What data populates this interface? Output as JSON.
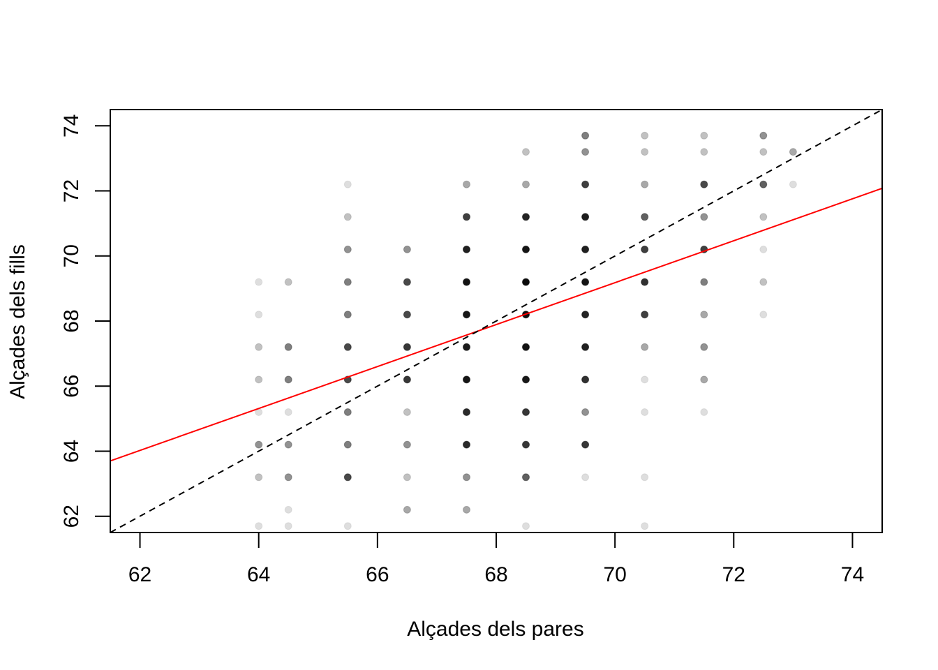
{
  "chart_data": {
    "type": "scatter",
    "title": "",
    "xlabel": "Alçades dels pares",
    "ylabel": "Alçades dels fills",
    "xlim": [
      61.5,
      74.5
    ],
    "ylim": [
      61.5,
      74.5
    ],
    "xticks": [
      62,
      64,
      66,
      68,
      70,
      72,
      74
    ],
    "yticks": [
      62,
      64,
      66,
      68,
      70,
      72,
      74
    ],
    "grid": false,
    "point_color": "#000000",
    "point_alpha_note": "darker points indicate more overlapping observations",
    "points": [
      {
        "x": 64.0,
        "y": 61.7,
        "n": 1
      },
      {
        "x": 64.0,
        "y": 63.2,
        "n": 2
      },
      {
        "x": 64.0,
        "y": 64.2,
        "n": 4
      },
      {
        "x": 64.0,
        "y": 65.2,
        "n": 1
      },
      {
        "x": 64.0,
        "y": 66.2,
        "n": 2
      },
      {
        "x": 64.0,
        "y": 67.2,
        "n": 2
      },
      {
        "x": 64.0,
        "y": 68.2,
        "n": 1
      },
      {
        "x": 64.0,
        "y": 69.2,
        "n": 1
      },
      {
        "x": 64.5,
        "y": 61.7,
        "n": 1
      },
      {
        "x": 64.5,
        "y": 62.2,
        "n": 1
      },
      {
        "x": 64.5,
        "y": 63.2,
        "n": 4
      },
      {
        "x": 64.5,
        "y": 64.2,
        "n": 4
      },
      {
        "x": 64.5,
        "y": 65.2,
        "n": 1
      },
      {
        "x": 64.5,
        "y": 66.2,
        "n": 5
      },
      {
        "x": 64.5,
        "y": 67.2,
        "n": 5
      },
      {
        "x": 64.5,
        "y": 69.2,
        "n": 2
      },
      {
        "x": 65.5,
        "y": 61.7,
        "n": 1
      },
      {
        "x": 65.5,
        "y": 63.2,
        "n": 9
      },
      {
        "x": 65.5,
        "y": 64.2,
        "n": 5
      },
      {
        "x": 65.5,
        "y": 65.2,
        "n": 5
      },
      {
        "x": 65.5,
        "y": 66.2,
        "n": 9
      },
      {
        "x": 65.5,
        "y": 67.2,
        "n": 9
      },
      {
        "x": 65.5,
        "y": 68.2,
        "n": 5
      },
      {
        "x": 65.5,
        "y": 69.2,
        "n": 5
      },
      {
        "x": 65.5,
        "y": 70.2,
        "n": 4
      },
      {
        "x": 65.5,
        "y": 71.2,
        "n": 2
      },
      {
        "x": 65.5,
        "y": 72.2,
        "n": 1
      },
      {
        "x": 66.5,
        "y": 62.2,
        "n": 3
      },
      {
        "x": 66.5,
        "y": 63.2,
        "n": 2
      },
      {
        "x": 66.5,
        "y": 64.2,
        "n": 4
      },
      {
        "x": 66.5,
        "y": 65.2,
        "n": 2
      },
      {
        "x": 66.5,
        "y": 66.2,
        "n": 11
      },
      {
        "x": 66.5,
        "y": 67.2,
        "n": 11
      },
      {
        "x": 66.5,
        "y": 68.2,
        "n": 9
      },
      {
        "x": 66.5,
        "y": 69.2,
        "n": 9
      },
      {
        "x": 66.5,
        "y": 70.2,
        "n": 4
      },
      {
        "x": 67.5,
        "y": 62.2,
        "n": 3
      },
      {
        "x": 67.5,
        "y": 63.2,
        "n": 4
      },
      {
        "x": 67.5,
        "y": 64.2,
        "n": 13
      },
      {
        "x": 67.5,
        "y": 65.2,
        "n": 13
      },
      {
        "x": 67.5,
        "y": 66.2,
        "n": 18
      },
      {
        "x": 67.5,
        "y": 67.2,
        "n": 16
      },
      {
        "x": 67.5,
        "y": 68.2,
        "n": 17
      },
      {
        "x": 67.5,
        "y": 69.2,
        "n": 19
      },
      {
        "x": 67.5,
        "y": 70.2,
        "n": 15
      },
      {
        "x": 67.5,
        "y": 71.2,
        "n": 10
      },
      {
        "x": 67.5,
        "y": 72.2,
        "n": 3
      },
      {
        "x": 68.5,
        "y": 61.7,
        "n": 1
      },
      {
        "x": 68.5,
        "y": 63.2,
        "n": 7
      },
      {
        "x": 68.5,
        "y": 64.2,
        "n": 11
      },
      {
        "x": 68.5,
        "y": 65.2,
        "n": 11
      },
      {
        "x": 68.5,
        "y": 66.2,
        "n": 17
      },
      {
        "x": 68.5,
        "y": 67.2,
        "n": 19
      },
      {
        "x": 68.5,
        "y": 68.2,
        "n": 20
      },
      {
        "x": 68.5,
        "y": 69.2,
        "n": 23
      },
      {
        "x": 68.5,
        "y": 70.2,
        "n": 18
      },
      {
        "x": 68.5,
        "y": 71.2,
        "n": 14
      },
      {
        "x": 68.5,
        "y": 72.2,
        "n": 3
      },
      {
        "x": 68.5,
        "y": 73.2,
        "n": 2
      },
      {
        "x": 69.5,
        "y": 63.2,
        "n": 1
      },
      {
        "x": 69.5,
        "y": 64.2,
        "n": 11
      },
      {
        "x": 69.5,
        "y": 65.2,
        "n": 4
      },
      {
        "x": 69.5,
        "y": 66.2,
        "n": 12
      },
      {
        "x": 69.5,
        "y": 67.2,
        "n": 15
      },
      {
        "x": 69.5,
        "y": 68.2,
        "n": 14
      },
      {
        "x": 69.5,
        "y": 69.2,
        "n": 18
      },
      {
        "x": 69.5,
        "y": 70.2,
        "n": 15
      },
      {
        "x": 69.5,
        "y": 71.2,
        "n": 16
      },
      {
        "x": 69.5,
        "y": 72.2,
        "n": 10
      },
      {
        "x": 69.5,
        "y": 73.2,
        "n": 4
      },
      {
        "x": 69.5,
        "y": 73.7,
        "n": 5
      },
      {
        "x": 70.5,
        "y": 61.7,
        "n": 1
      },
      {
        "x": 70.5,
        "y": 63.2,
        "n": 1
      },
      {
        "x": 70.5,
        "y": 65.2,
        "n": 1
      },
      {
        "x": 70.5,
        "y": 66.2,
        "n": 1
      },
      {
        "x": 70.5,
        "y": 67.2,
        "n": 3
      },
      {
        "x": 70.5,
        "y": 68.2,
        "n": 10
      },
      {
        "x": 70.5,
        "y": 69.2,
        "n": 12
      },
      {
        "x": 70.5,
        "y": 70.2,
        "n": 10
      },
      {
        "x": 70.5,
        "y": 71.2,
        "n": 7
      },
      {
        "x": 70.5,
        "y": 72.2,
        "n": 3
      },
      {
        "x": 70.5,
        "y": 73.2,
        "n": 2
      },
      {
        "x": 70.5,
        "y": 73.7,
        "n": 2
      },
      {
        "x": 71.5,
        "y": 65.2,
        "n": 1
      },
      {
        "x": 71.5,
        "y": 66.2,
        "n": 3
      },
      {
        "x": 71.5,
        "y": 67.2,
        "n": 4
      },
      {
        "x": 71.5,
        "y": 68.2,
        "n": 3
      },
      {
        "x": 71.5,
        "y": 69.2,
        "n": 5
      },
      {
        "x": 71.5,
        "y": 70.2,
        "n": 10
      },
      {
        "x": 71.5,
        "y": 71.2,
        "n": 4
      },
      {
        "x": 71.5,
        "y": 72.2,
        "n": 9
      },
      {
        "x": 71.5,
        "y": 73.2,
        "n": 2
      },
      {
        "x": 71.5,
        "y": 73.7,
        "n": 2
      },
      {
        "x": 72.5,
        "y": 68.2,
        "n": 1
      },
      {
        "x": 72.5,
        "y": 69.2,
        "n": 2
      },
      {
        "x": 72.5,
        "y": 70.2,
        "n": 1
      },
      {
        "x": 72.5,
        "y": 71.2,
        "n": 2
      },
      {
        "x": 72.5,
        "y": 72.2,
        "n": 7
      },
      {
        "x": 72.5,
        "y": 73.2,
        "n": 2
      },
      {
        "x": 72.5,
        "y": 73.7,
        "n": 4
      },
      {
        "x": 73.0,
        "y": 72.2,
        "n": 1
      },
      {
        "x": 73.0,
        "y": 73.2,
        "n": 3
      }
    ],
    "lines": [
      {
        "style": "solid",
        "color": "#ff0000",
        "x": [
          61.5,
          74.5
        ],
        "y": [
          63.7,
          72.08
        ]
      },
      {
        "style": "dashed",
        "color": "#000000",
        "x": [
          61.5,
          74.5
        ],
        "y": [
          61.5,
          74.5
        ]
      }
    ]
  }
}
